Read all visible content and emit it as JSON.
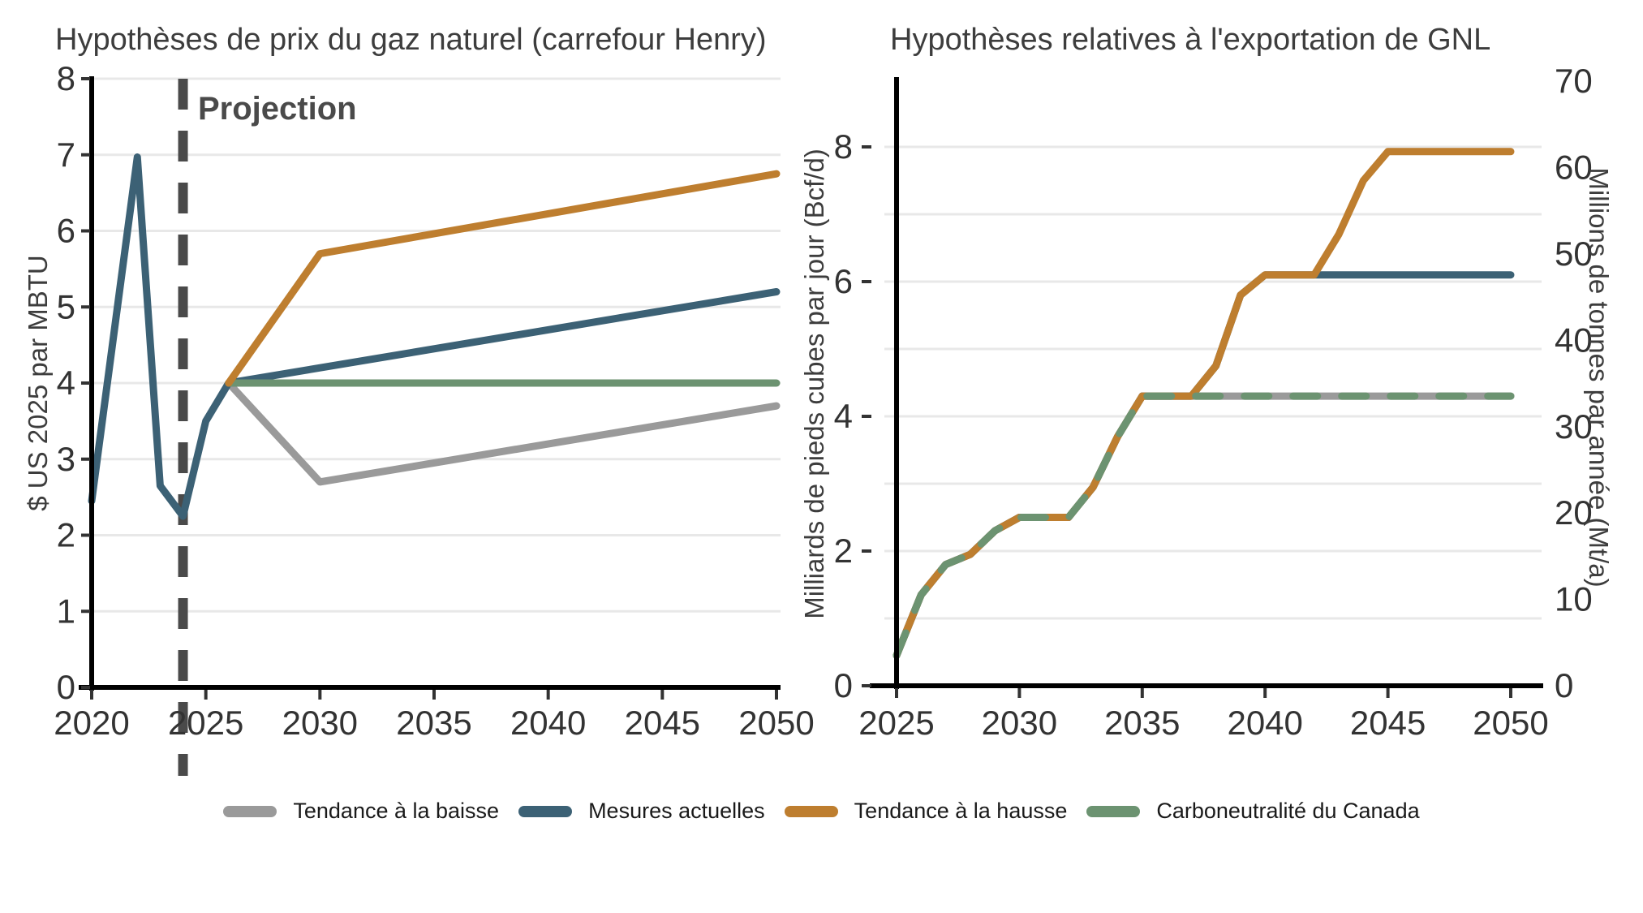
{
  "annotation_color": "#4a4a4a",
  "grid_color": "#e8e8e8",
  "axis_color": "#000000",
  "tick_color": "#333333",
  "legend": {
    "items": [
      {
        "label": "Tendance à la baisse",
        "color": "#9a9a9a"
      },
      {
        "label": "Mesures actuelles",
        "color": "#3c6175"
      },
      {
        "label": "Tendance à la hausse",
        "color": "#be7e2f"
      },
      {
        "label": "Carboneutralité du Canada",
        "color": "#6c9371"
      }
    ]
  },
  "chart_data": [
    {
      "type": "line",
      "id": "gas-price",
      "title": "Hypothèses de prix du gaz naturel (carrefour Henry)",
      "xlabel": "",
      "ylabel": "$ US 2025 par MBTU",
      "xlim": [
        2020,
        2050
      ],
      "ylim": [
        0,
        8
      ],
      "xticks": [
        2020,
        2025,
        2030,
        2035,
        2040,
        2045,
        2050
      ],
      "yticks": [
        0,
        1,
        2,
        3,
        4,
        5,
        6,
        7,
        8
      ],
      "ygrid": [
        1,
        2,
        3,
        4,
        5,
        6,
        7,
        8
      ],
      "grid": "horizontal",
      "legend_position": "bottom",
      "annotation": {
        "text": "Projection",
        "x": 2024
      },
      "series": [
        {
          "name": "Tendance à la baisse",
          "color": "#9a9a9a",
          "x": [
            2026,
            2030,
            2050
          ],
          "y": [
            4.0,
            2.7,
            3.7
          ]
        },
        {
          "name": "Mesures actuelles (projection)",
          "color": "#3c6175",
          "x": [
            2026,
            2050
          ],
          "y": [
            4.0,
            5.2
          ]
        },
        {
          "name": "Mesures actuelles (historique)",
          "color": "#3c6175",
          "x": [
            2020,
            2022,
            2023,
            2024,
            2025,
            2026
          ],
          "y": [
            2.45,
            6.97,
            2.65,
            2.25,
            3.5,
            4.0
          ]
        },
        {
          "name": "Carboneutralité du Canada",
          "color": "#6c9371",
          "x": [
            2026,
            2050
          ],
          "y": [
            4.0,
            4.0
          ]
        },
        {
          "name": "Tendance à la hausse",
          "color": "#be7e2f",
          "x": [
            2026,
            2030,
            2050
          ],
          "y": [
            4.0,
            5.7,
            6.75
          ]
        }
      ]
    },
    {
      "type": "line",
      "id": "lng-export",
      "title": "Hypothèses relatives à l'exportation de GNL",
      "xlabel": "",
      "ylabel": "Milliards de pieds cubes par jour (Bcf/d)",
      "y2label": "Millions de tonnes par année (Mt/a)",
      "xlim": [
        2025,
        2050
      ],
      "ylim": [
        0,
        9
      ],
      "y2lim": [
        0,
        70
      ],
      "y2_per_y1": 7.8,
      "xticks": [
        2025,
        2030,
        2035,
        2040,
        2045,
        2050
      ],
      "yticks": [
        0,
        2,
        4,
        6,
        8
      ],
      "y2ticks": [
        0,
        10,
        20,
        30,
        40,
        50,
        60,
        70
      ],
      "ygrid": [
        1,
        2,
        3,
        4,
        5,
        6,
        7,
        8
      ],
      "grid": "horizontal",
      "series": [
        {
          "name": "Tendance à la baisse",
          "color": "#9a9a9a",
          "x": [
            2025,
            2026,
            2027,
            2028,
            2029,
            2030,
            2032,
            2033,
            2034,
            2035,
            2050
          ],
          "y": [
            0.45,
            1.35,
            1.8,
            1.95,
            2.3,
            2.5,
            2.5,
            2.95,
            3.7,
            4.3,
            4.3
          ]
        },
        {
          "name": "Mesures actuelles",
          "color": "#3c6175",
          "x": [
            2025,
            2026,
            2027,
            2028,
            2029,
            2030,
            2032,
            2033,
            2034,
            2035,
            2037,
            2038,
            2039,
            2040,
            2050
          ],
          "y": [
            0.45,
            1.35,
            1.8,
            1.95,
            2.3,
            2.5,
            2.5,
            2.95,
            3.7,
            4.3,
            4.3,
            4.75,
            5.8,
            6.1,
            6.1
          ]
        },
        {
          "name": "Tendance à la hausse",
          "color": "#be7e2f",
          "x": [
            2025,
            2026,
            2027,
            2028,
            2029,
            2030,
            2032,
            2033,
            2034,
            2035,
            2037,
            2038,
            2039,
            2040,
            2042,
            2043,
            2044,
            2045,
            2050
          ],
          "y": [
            0.45,
            1.35,
            1.8,
            1.95,
            2.3,
            2.5,
            2.5,
            2.95,
            3.7,
            4.3,
            4.3,
            4.75,
            5.8,
            6.1,
            6.1,
            6.7,
            7.5,
            7.93,
            7.93
          ]
        },
        {
          "name": "Carboneutralité du Canada",
          "color": "#6c9371",
          "dash": [
            30,
            30
          ],
          "x": [
            2025,
            2026,
            2027,
            2028,
            2029,
            2030,
            2032,
            2033,
            2034,
            2035,
            2050
          ],
          "y": [
            0.45,
            1.35,
            1.8,
            1.95,
            2.3,
            2.5,
            2.5,
            2.95,
            3.7,
            4.3,
            4.3
          ]
        }
      ]
    }
  ]
}
